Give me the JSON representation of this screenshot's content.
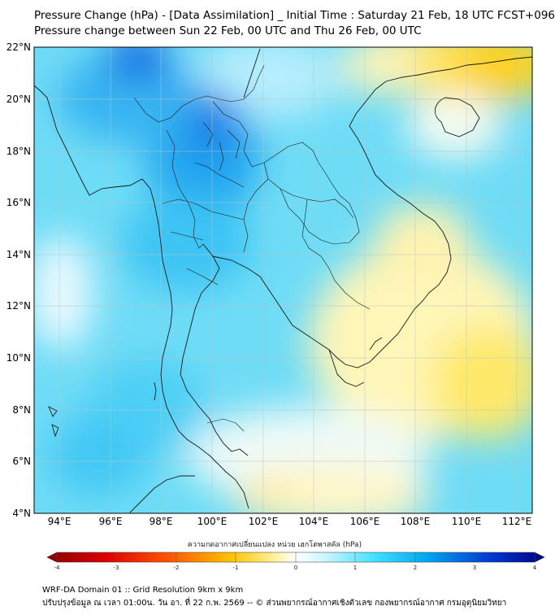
{
  "header": {
    "title_line1": "Pressure Change (hPa) - [Data Assimilation] _ Initial Time : Saturday 21 Feb, 18 UTC FCST+096",
    "title_line2": "Pressure change between Sun 22 Feb, 00 UTC and Thu 26 Feb, 00 UTC"
  },
  "map": {
    "lat_labels": [
      "22°N",
      "20°N",
      "18°N",
      "16°N",
      "14°N",
      "12°N",
      "10°N",
      "8°N",
      "6°N",
      "4°N"
    ],
    "lon_labels": [
      "94°E",
      "96°E",
      "98°E",
      "100°E",
      "102°E",
      "104°E",
      "106°E",
      "108°E",
      "110°E",
      "112°E"
    ]
  },
  "colorbar": {
    "label": "ความกดอากาศเปลี่ยนแปลง หน่วย เฮกโตพาสคัล (hPa)",
    "ticks": [
      "-4",
      "-3",
      "-2",
      "-1",
      "0",
      "1",
      "2",
      "3",
      "4"
    ],
    "colors": [
      "#6e0000",
      "#d40000",
      "#ff4a00",
      "#ff9a00",
      "#ffd400",
      "#fff8b0",
      "#ffffff",
      "#c8f8ff",
      "#40e0ff",
      "#00a8f0",
      "#0060e0",
      "#0010b0",
      "#000060"
    ]
  },
  "footer": {
    "line1": "WRF-DA Domain 01 :: Grid Resolution 9km x 9km",
    "line2": "ปรับปรุงข้อมูล ณ เวลา 01:00น. วัน อา. ที่ 22 ก.พ. 2569 -- © ส่วนพยากรณ์อากาศเชิงตัวเลข กองพยากรณ์อากาศ กรมอุตุนิยมวิทยา"
  }
}
